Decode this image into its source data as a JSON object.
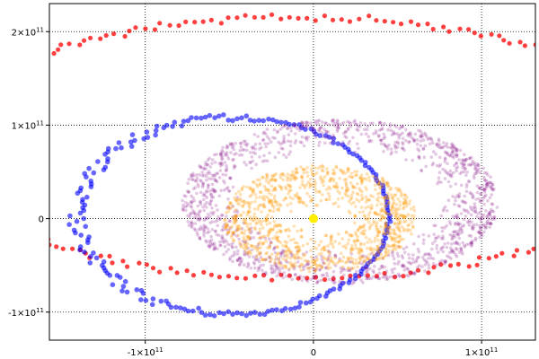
{
  "chart_data": {
    "type": "scatter",
    "title": "",
    "xlabel": "",
    "ylabel": "",
    "xlim": [
      -157000000000.0,
      132000000000.0
    ],
    "ylim": [
      -130000000000.0,
      230000000000.0
    ],
    "grid": true,
    "grid_style": "dotted",
    "x_ticks": [
      {
        "value": -100000000000.0,
        "base": "-1×10",
        "exp": "11"
      },
      {
        "value": 0,
        "base": "0",
        "exp": ""
      },
      {
        "value": 100000000000.0,
        "base": "1×10",
        "exp": "11"
      }
    ],
    "y_ticks": [
      {
        "value": 200000000000.0,
        "base": "2×10",
        "exp": "11"
      },
      {
        "value": 100000000000.0,
        "base": "1×10",
        "exp": "11"
      },
      {
        "value": 0,
        "base": "0",
        "exp": ""
      },
      {
        "value": -100000000000.0,
        "base": "-1×10",
        "exp": "11"
      }
    ],
    "center_point": {
      "x": 0,
      "y": 0,
      "color": "#ffee00"
    },
    "series": [
      {
        "color": "#ff0000",
        "style": "ring",
        "cx": -9000000000.0,
        "cy": 76000000000.0,
        "a_out": 219000000000.0,
        "b_out": 144000000000.0,
        "a_in": 212000000000.0,
        "b_in": 136000000000.0,
        "opacity": 0.75,
        "n": 260
      },
      {
        "color": "#0000ff",
        "style": "crescent",
        "cx": -48000000000.0,
        "cy": 3000000000.0,
        "a": 93000000000.0,
        "b": 105000000000.0,
        "thick_max": 11000000000.0,
        "thick_min": 2000000000.0,
        "opacity": 0.6,
        "n": 220
      },
      {
        "color": "#800080",
        "style": "disk",
        "cx": 16000000000.0,
        "cy": 18000000000.0,
        "a_out": 94000000000.0,
        "b_out": 88000000000.0,
        "a_in": 60000000000.0,
        "b_in": 52000000000.0,
        "opacity": 0.22,
        "n": 1400
      },
      {
        "color": "#ff9900",
        "style": "disk",
        "cx": 4000000000.0,
        "cy": 0.0,
        "a_out": 57000000000.0,
        "b_out": 57000000000.0,
        "a_in": 19000000000.0,
        "b_in": 11000000000.0,
        "opacity": 0.3,
        "n": 1100
      }
    ]
  }
}
